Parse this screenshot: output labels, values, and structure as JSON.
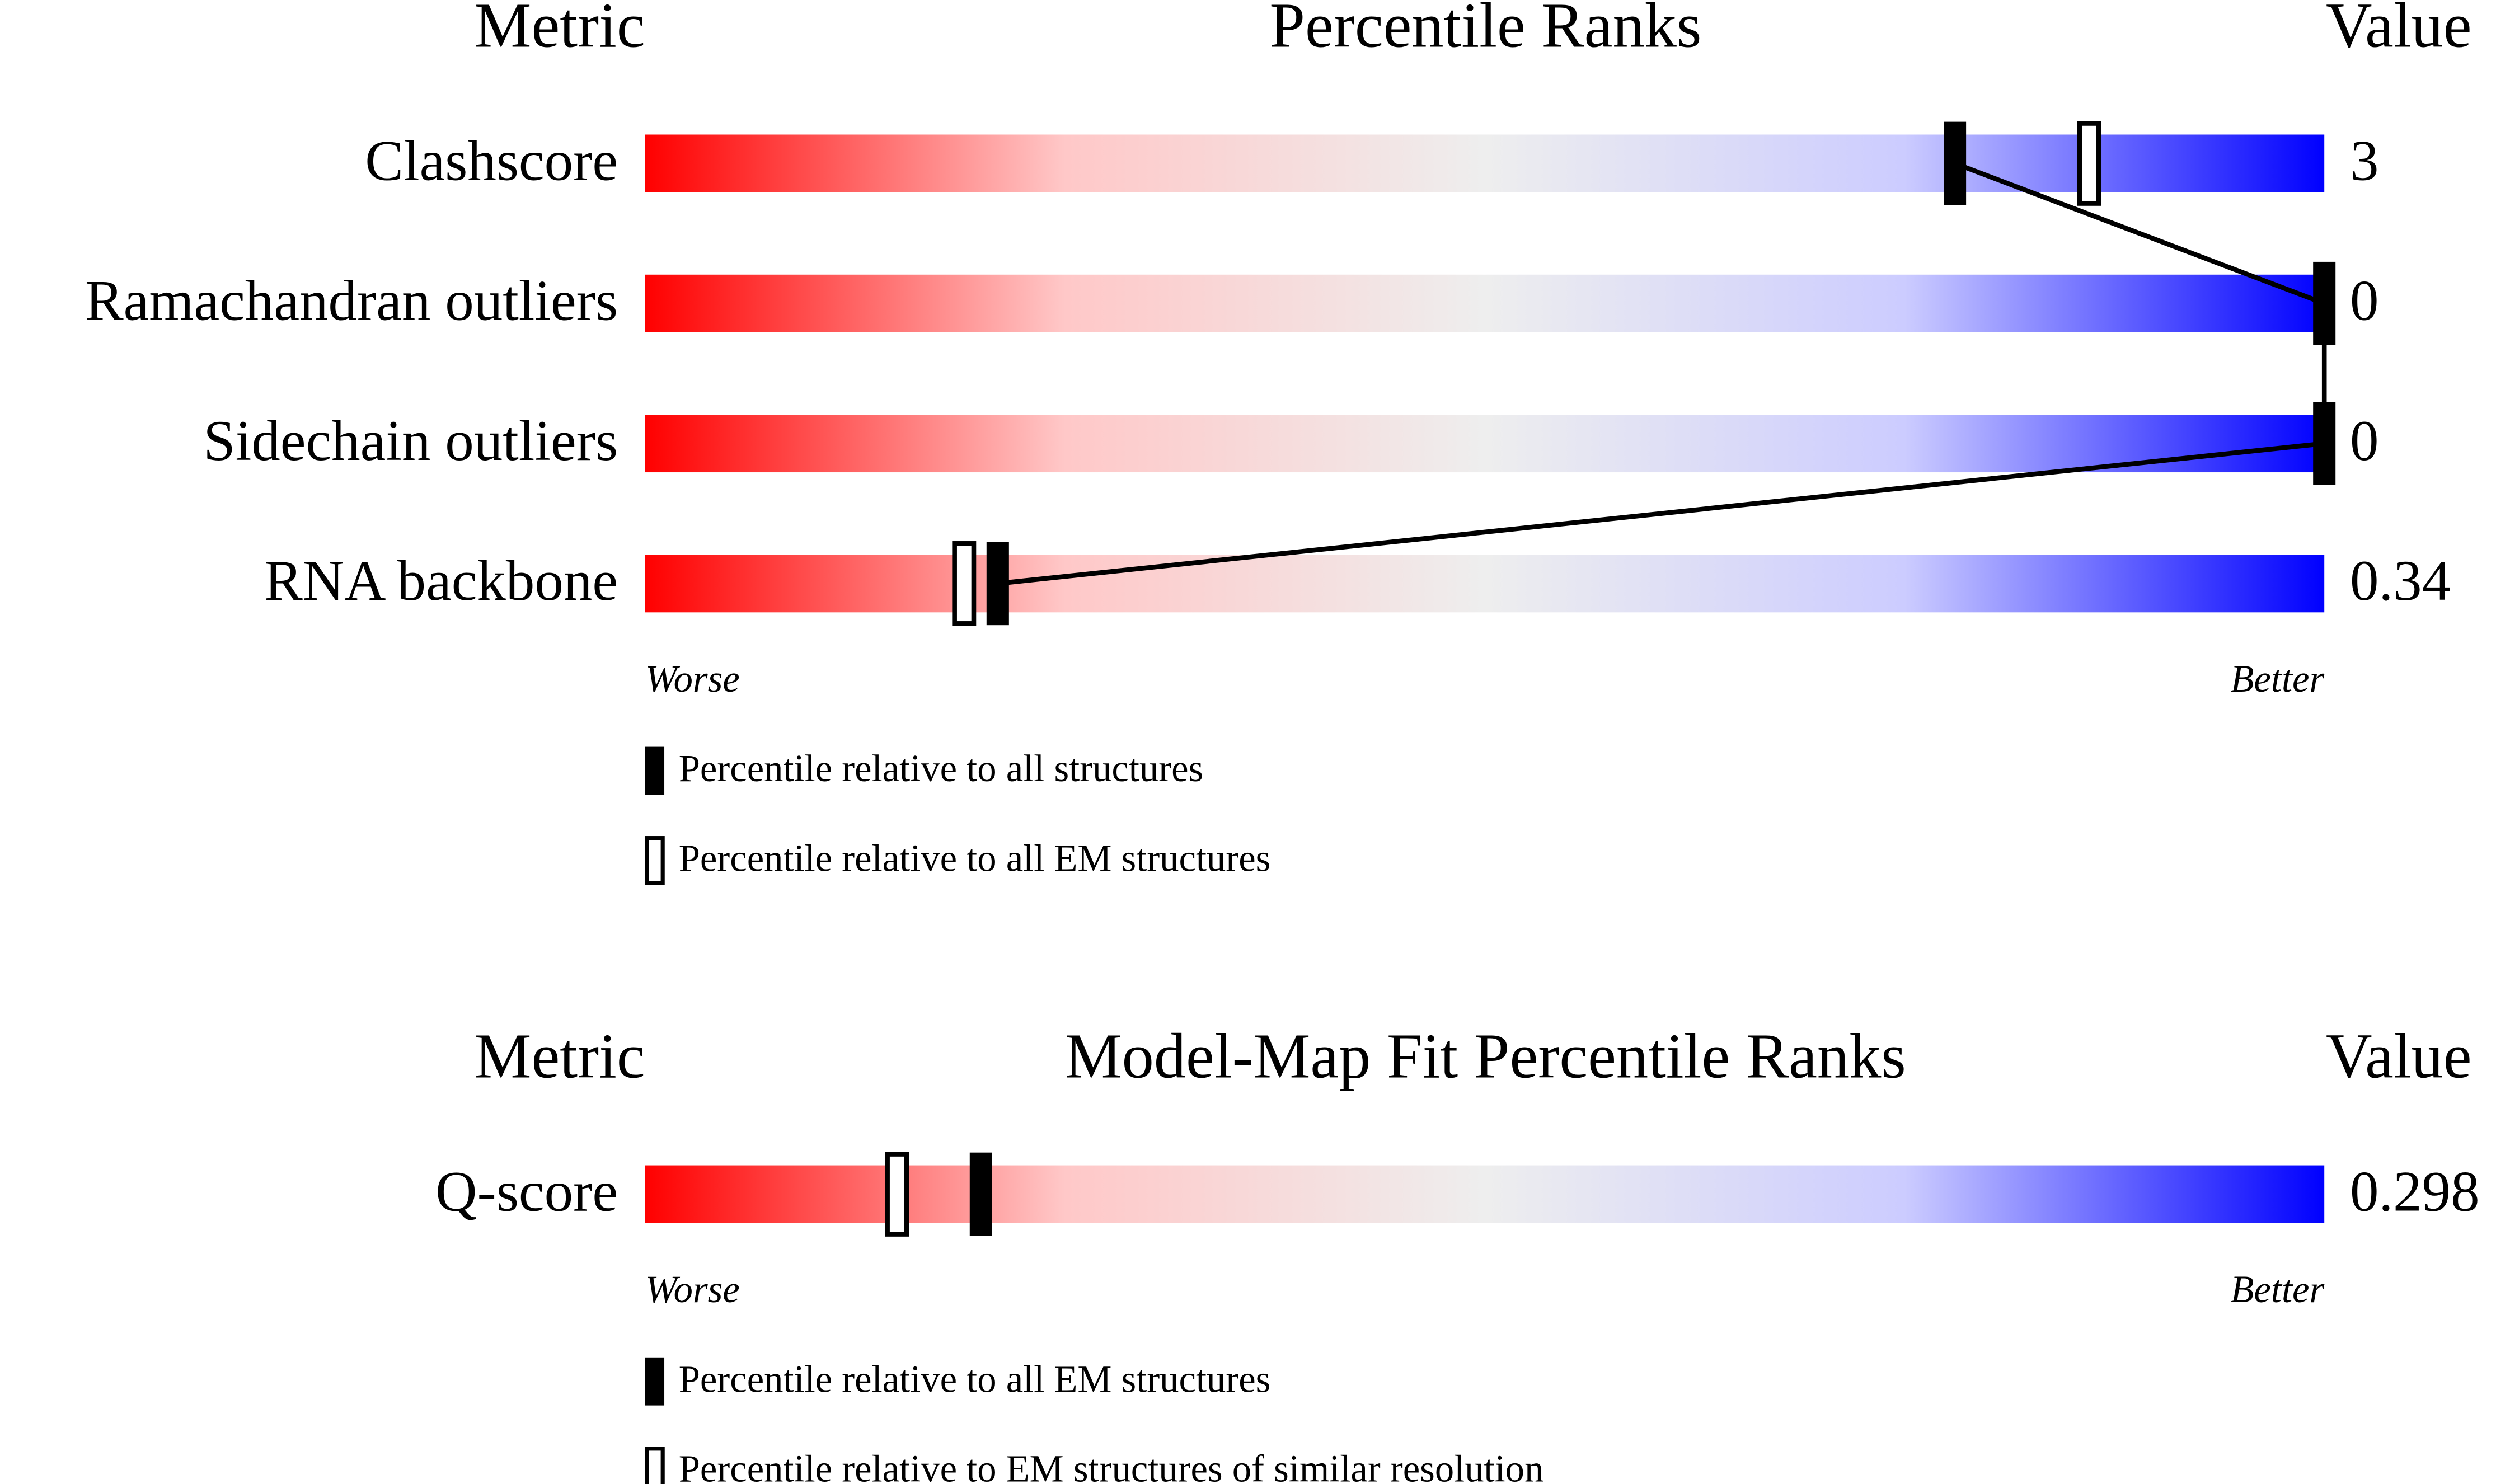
{
  "chart_data": [
    {
      "type": "slider",
      "metric_header": "Metric",
      "title": "Percentile Ranks",
      "value_header": "Value",
      "categories": [
        "Clashscore",
        "Ramachandran outliers",
        "Sidechain outliers",
        "RNA backbone"
      ],
      "values": [
        3,
        0,
        0,
        0.34
      ],
      "xlim": [
        0,
        100
      ],
      "low_label": "Worse",
      "high_label": "Better",
      "series": [
        {
          "name": "Percentile relative to all structures",
          "style": "filled",
          "color": "#000000",
          "values": [
            78,
            100,
            100,
            21
          ]
        },
        {
          "name": "Percentile relative to all EM structures",
          "style": "open",
          "color": "#000000",
          "values": [
            86,
            null,
            null,
            19
          ]
        }
      ]
    },
    {
      "type": "slider",
      "metric_header": "Metric",
      "title": "Model-Map Fit Percentile Ranks",
      "value_header": "Value",
      "categories": [
        "Q-score"
      ],
      "values": [
        0.298
      ],
      "xlim": [
        0,
        100
      ],
      "low_label": "Worse",
      "high_label": "Better",
      "series": [
        {
          "name": "Percentile relative to all EM structures",
          "style": "filled",
          "color": "#000000",
          "values": [
            20
          ]
        },
        {
          "name": "Percentile relative to EM structures of similar resolution",
          "style": "open",
          "color": "#000000",
          "values": [
            15
          ]
        }
      ]
    }
  ]
}
